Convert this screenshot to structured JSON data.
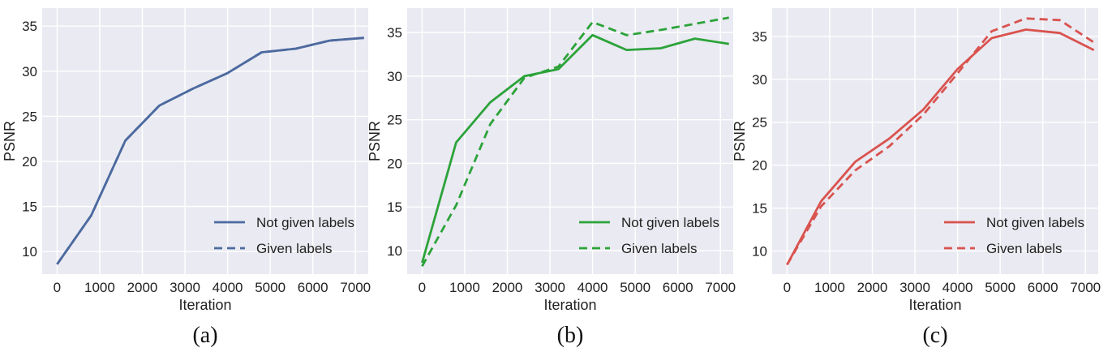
{
  "chart_data": [
    {
      "type": "line",
      "caption": "(a)",
      "xlabel": "Iteration",
      "ylabel": "PSNR",
      "xlim": [
        -350,
        7300
      ],
      "ylim": [
        7.5,
        37
      ],
      "xticks": [
        0,
        1000,
        2000,
        3000,
        4000,
        5000,
        6000,
        7000
      ],
      "yticks": [
        10,
        15,
        20,
        25,
        30,
        35
      ],
      "grid": true,
      "legend_position": "lower-right",
      "color": "#4c6a9f",
      "series": [
        {
          "name": "Not given labels",
          "style": "solid",
          "x": [
            0,
            800,
            1600,
            2400,
            3200,
            4000,
            4800,
            5600,
            6400,
            7200
          ],
          "y": [
            8.6,
            14.0,
            22.3,
            26.2,
            28.1,
            29.8,
            32.1,
            32.5,
            33.4,
            33.7
          ]
        },
        {
          "name": "Given labels",
          "style": "dashed",
          "x": [
            0,
            800,
            1600,
            2400,
            3200,
            4000,
            4800,
            5600,
            6400,
            7200
          ],
          "y": [
            8.6,
            14.0,
            22.3,
            26.2,
            28.1,
            29.8,
            32.1,
            32.5,
            33.4,
            33.7
          ]
        }
      ]
    },
    {
      "type": "line",
      "caption": "(b)",
      "xlabel": "Iteration",
      "ylabel": "PSNR",
      "xlim": [
        -350,
        7300
      ],
      "ylim": [
        7.3,
        37.8
      ],
      "xticks": [
        0,
        1000,
        2000,
        3000,
        4000,
        5000,
        6000,
        7000
      ],
      "yticks": [
        10,
        15,
        20,
        25,
        30,
        35
      ],
      "grid": true,
      "legend_position": "lower-right",
      "color": "#2ca33a",
      "series": [
        {
          "name": "Not given labels",
          "style": "solid",
          "x": [
            0,
            800,
            1600,
            2400,
            3200,
            4000,
            4800,
            5600,
            6400,
            7200
          ],
          "y": [
            8.6,
            22.4,
            27.0,
            30.0,
            30.8,
            34.7,
            33.0,
            33.2,
            34.3,
            33.7
          ]
        },
        {
          "name": "Given labels",
          "style": "dashed",
          "x": [
            0,
            800,
            1600,
            2400,
            3200,
            4000,
            4800,
            5600,
            6400,
            7200
          ],
          "y": [
            8.2,
            15.2,
            24.5,
            29.8,
            31.1,
            36.2,
            34.7,
            35.3,
            36.0,
            36.7
          ]
        }
      ]
    },
    {
      "type": "line",
      "caption": "(c)",
      "xlabel": "Iteration",
      "ylabel": "PSNR",
      "xlim": [
        -350,
        7300
      ],
      "ylim": [
        7.3,
        38.3
      ],
      "xticks": [
        0,
        1000,
        2000,
        3000,
        4000,
        5000,
        6000,
        7000
      ],
      "yticks": [
        10,
        15,
        20,
        25,
        30,
        35
      ],
      "grid": true,
      "legend_position": "lower-right",
      "color": "#d9534f",
      "series": [
        {
          "name": "Not given labels",
          "style": "solid",
          "x": [
            0,
            800,
            1600,
            2400,
            3200,
            4000,
            4800,
            5600,
            6400,
            7200
          ],
          "y": [
            8.4,
            15.8,
            20.4,
            23.1,
            26.5,
            31.2,
            34.8,
            35.8,
            35.4,
            33.4
          ]
        },
        {
          "name": "Given labels",
          "style": "dashed",
          "x": [
            0,
            800,
            1600,
            2400,
            3200,
            4000,
            4800,
            5600,
            6400,
            7200
          ],
          "y": [
            8.4,
            15.2,
            19.4,
            22.2,
            25.9,
            30.7,
            35.6,
            37.1,
            36.9,
            34.3
          ]
        }
      ]
    }
  ]
}
